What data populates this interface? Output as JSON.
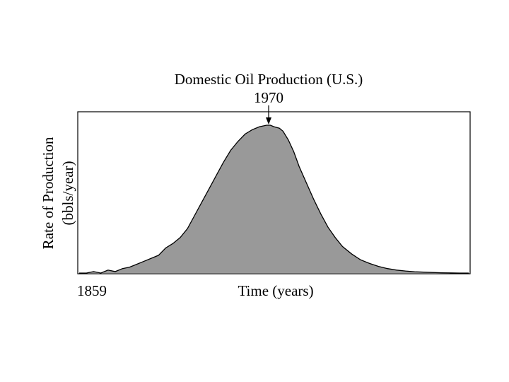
{
  "chart_data": {
    "type": "area",
    "title": "Domestic Oil Production (U.S.)",
    "peak_label": "1970",
    "xlabel": "Time (years)",
    "x_start_label": "1859",
    "ylabel_line1": "Rate of Production",
    "ylabel_line2": "(bbls/year)",
    "xlim": [
      1859,
      2075
    ],
    "ylim": [
      0,
      1
    ],
    "fill_color": "#999999",
    "line_color": "#000000",
    "x": [
      1859,
      1863,
      1867,
      1871,
      1875,
      1879,
      1883,
      1887,
      1891,
      1895,
      1899,
      1903,
      1907,
      1911,
      1915,
      1919,
      1923,
      1927,
      1931,
      1935,
      1939,
      1943,
      1947,
      1951,
      1955,
      1959,
      1963,
      1965,
      1967,
      1970,
      1972,
      1975,
      1978,
      1981,
      1985,
      1989,
      1993,
      1997,
      2001,
      2005,
      2010,
      2015,
      2020,
      2025,
      2030,
      2035,
      2040,
      2045,
      2050,
      2055,
      2060,
      2065,
      2070,
      2075
    ],
    "y": [
      0.0,
      0.0,
      0.01,
      0.0,
      0.02,
      0.01,
      0.03,
      0.04,
      0.06,
      0.08,
      0.1,
      0.12,
      0.17,
      0.2,
      0.24,
      0.3,
      0.39,
      0.48,
      0.57,
      0.66,
      0.75,
      0.83,
      0.89,
      0.94,
      0.97,
      0.99,
      1.0,
      1.0,
      0.99,
      0.98,
      0.96,
      0.9,
      0.82,
      0.72,
      0.61,
      0.5,
      0.4,
      0.31,
      0.24,
      0.18,
      0.13,
      0.09,
      0.065,
      0.045,
      0.03,
      0.02,
      0.014,
      0.009,
      0.006,
      0.004,
      0.002,
      0.001,
      0.0,
      0.0
    ]
  }
}
